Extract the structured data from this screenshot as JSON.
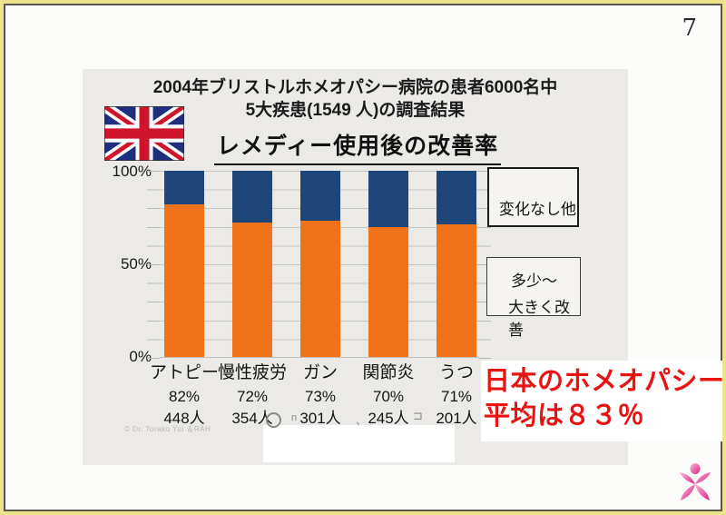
{
  "page": {
    "number": "7"
  },
  "slide": {
    "title_line1": "2004年ブリストルホメオパシー病院の患者6000名中",
    "title_line2": "5大疾患(1549 人)の調査結果",
    "chart_title": "レメディー使用後の改善率",
    "copyright": "© Dr. Torako Yui ＆RAH",
    "annotation": {
      "line1": "日本のホメオパシー",
      "line2": "平均は８３％",
      "color": "#e81313"
    },
    "cover_fragments": {
      "n": "n",
      "comma": "、",
      "box": "⊐"
    }
  },
  "legend": {
    "no_change": {
      "label": "変化なし他",
      "color": "#2b5a8c"
    },
    "improved": {
      "line1": "多少～",
      "line2": "大きく改善",
      "color": "#f0731c"
    }
  },
  "chart_data": {
    "type": "stacked-bar",
    "title": "レメディー使用後の改善率",
    "categories": [
      "アトピー",
      "慢性疲労",
      "ガン",
      "関節炎",
      "うつ"
    ],
    "series": [
      {
        "name": "多少～大きく改善",
        "color": "#f0731c",
        "values": [
          82,
          72,
          73,
          70,
          71
        ]
      },
      {
        "name": "変化なし他",
        "color": "#1f4678",
        "values": [
          18,
          28,
          27,
          30,
          29
        ]
      }
    ],
    "percent_labels": [
      "82%",
      "72%",
      "73%",
      "70%",
      "71%"
    ],
    "count_labels": [
      "448人",
      "354人",
      "301人",
      "245人",
      "201人"
    ],
    "yticks": [
      "100%",
      "50%",
      "0%"
    ],
    "ylim": [
      0,
      100
    ],
    "gridlines": "every 10%, light gray",
    "legend_position": "right"
  }
}
